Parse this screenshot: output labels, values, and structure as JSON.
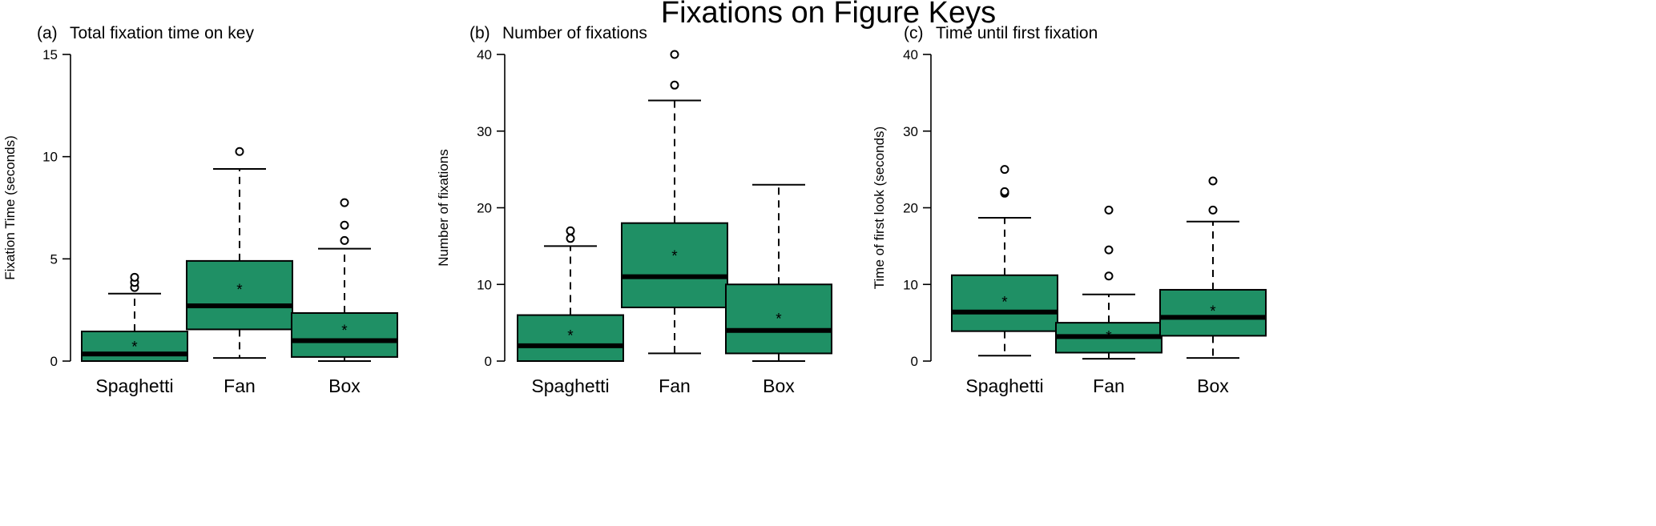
{
  "figure": {
    "title": "Fixations on Figure Keys"
  },
  "colors": {
    "box_fill": "#1f9065",
    "median": "#000000",
    "stroke": "#000000"
  },
  "chart_data": [
    {
      "type": "boxplot",
      "panel_label": "(a)",
      "title": "Total fixation time on key",
      "ylabel": "Fixation Time (seconds)",
      "xlabel": "",
      "ylim": [
        0,
        15
      ],
      "yticks": [
        0,
        5,
        10,
        15
      ],
      "categories": [
        "Spaghetti",
        "Fan",
        "Box"
      ],
      "boxes": [
        {
          "name": "Spaghetti",
          "min": 0.0,
          "q1": 0.0,
          "median": 0.35,
          "q3": 1.45,
          "max": 3.3,
          "mean": 0.8,
          "outliers": [
            3.6,
            3.85,
            4.1
          ]
        },
        {
          "name": "Fan",
          "min": 0.15,
          "q1": 1.55,
          "median": 2.7,
          "q3": 4.9,
          "max": 9.4,
          "mean": 3.6,
          "outliers": [
            10.25
          ]
        },
        {
          "name": "Box",
          "min": 0.0,
          "q1": 0.2,
          "median": 1.0,
          "q3": 2.35,
          "max": 5.5,
          "mean": 1.6,
          "outliers": [
            5.9,
            6.65,
            7.75
          ]
        }
      ],
      "grid": false
    },
    {
      "type": "boxplot",
      "panel_label": "(b)",
      "title": "Number of fixations",
      "ylabel": "Number of fixations",
      "xlabel": "",
      "ylim": [
        0,
        40
      ],
      "yticks": [
        0,
        10,
        20,
        30,
        40
      ],
      "categories": [
        "Spaghetti",
        "Fan",
        "Box"
      ],
      "boxes": [
        {
          "name": "Spaghetti",
          "min": 0,
          "q1": 0,
          "median": 2,
          "q3": 6,
          "max": 15,
          "mean": 3.6,
          "outliers": [
            16,
            17
          ]
        },
        {
          "name": "Fan",
          "min": 1,
          "q1": 7,
          "median": 11,
          "q3": 18,
          "max": 34,
          "mean": 14,
          "outliers": [
            36,
            40
          ]
        },
        {
          "name": "Box",
          "min": 0,
          "q1": 1,
          "median": 4,
          "q3": 10,
          "max": 23,
          "mean": 5.8,
          "outliers": []
        }
      ],
      "grid": false
    },
    {
      "type": "boxplot",
      "panel_label": "(c)",
      "title": "Time until first fixation",
      "ylabel": "Time of first look (seconds)",
      "xlabel": "",
      "ylim": [
        0,
        40
      ],
      "yticks": [
        0,
        10,
        20,
        30,
        40
      ],
      "categories": [
        "Spaghetti",
        "Fan",
        "Box"
      ],
      "boxes": [
        {
          "name": "Spaghetti",
          "min": 0.7,
          "q1": 3.9,
          "median": 6.4,
          "q3": 11.2,
          "max": 18.7,
          "mean": 8.0,
          "outliers": [
            21.9,
            22.1,
            25.0
          ]
        },
        {
          "name": "Fan",
          "min": 0.3,
          "q1": 1.1,
          "median": 3.2,
          "q3": 5.0,
          "max": 8.7,
          "mean": 3.5,
          "outliers": [
            11.1,
            14.5,
            19.7
          ]
        },
        {
          "name": "Box",
          "min": 0.4,
          "q1": 3.3,
          "median": 5.7,
          "q3": 9.3,
          "max": 18.2,
          "mean": 6.8,
          "outliers": [
            19.7,
            23.5
          ]
        }
      ],
      "grid": false
    }
  ]
}
